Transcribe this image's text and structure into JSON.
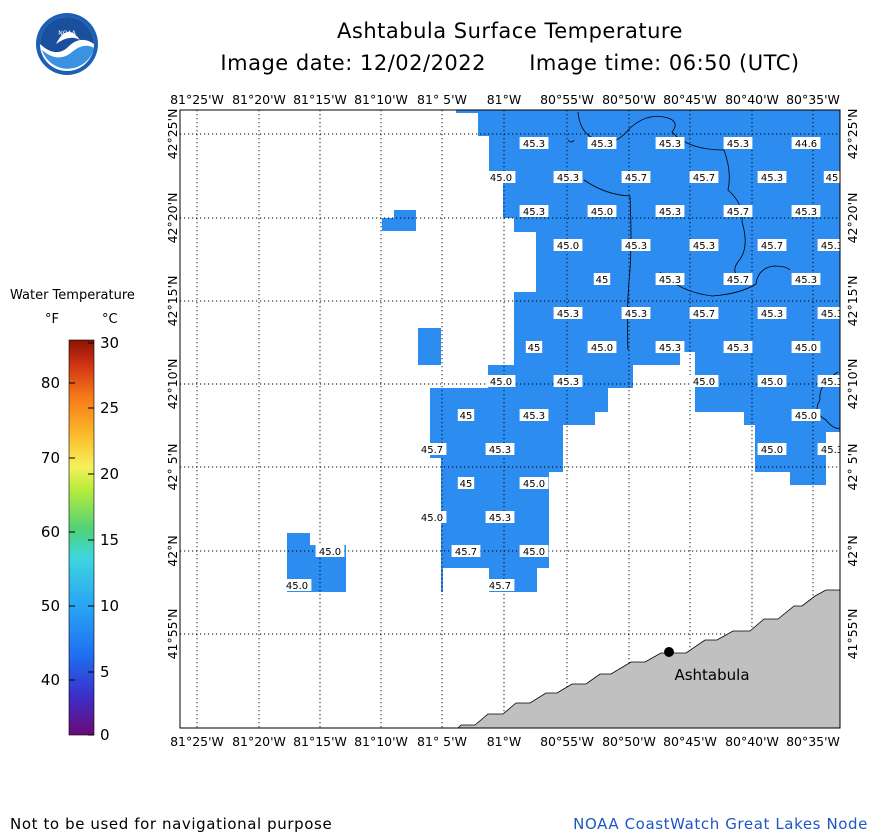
{
  "title": "Ashtabula Surface Temperature",
  "image_date": "Image date: 12/02/2022",
  "image_time": "Image time: 06:50 (UTC)",
  "legend": {
    "title": "Water Temperature",
    "unit_f": "°F",
    "unit_c": "°C",
    "fahrenheit_ticks": [
      "80",
      "70",
      "60",
      "50",
      "40"
    ],
    "celsius_ticks": [
      "30",
      "25",
      "20",
      "15",
      "10",
      "5",
      "0"
    ]
  },
  "axes": {
    "lon_labels": [
      "81°25'W",
      "81°20'W",
      "81°15'W",
      "81°10'W",
      "81° 5'W",
      "81°W",
      "80°55'W",
      "80°50'W",
      "80°45'W",
      "80°40'W",
      "80°35'W"
    ],
    "lat_labels": [
      "42°25'N",
      "42°20'N",
      "42°15'N",
      "42°10'N",
      "42° 5'N",
      "42°N",
      "41°55'N"
    ]
  },
  "city": {
    "name": "Ashtabula"
  },
  "temperature_labels": [
    "45.3",
    "45.3",
    "45.3",
    "45.3",
    "44.6",
    "45.0",
    "45.3",
    "45.7",
    "45.7",
    "45.3",
    "45",
    "45.3",
    "45.0",
    "45.3",
    "45.7",
    "45.3",
    "45.0",
    "45.3",
    "45.3",
    "45.7",
    "45.3",
    "45",
    "45.3",
    "45.7",
    "45.3",
    "45.3",
    "45.3",
    "45.7",
    "45.3",
    "45.3",
    "45",
    "45.0",
    "45.3",
    "45.3",
    "45.0",
    "45.0",
    "45.3",
    "45.0",
    "45.0",
    "45.3",
    "45",
    "45.3",
    "45.0",
    "45.7",
    "45.3",
    "45.0",
    "45.3",
    "45",
    "45.0",
    "45.0",
    "45.3",
    "45.0",
    "45.7",
    "45.0",
    "45.0",
    "45.7",
    "45.0"
  ],
  "footer": {
    "disclaimer": "Not to be used for navigational purpose",
    "credit": "NOAA CoastWatch Great Lakes Node"
  },
  "colors": {
    "water": "#2d8cf0",
    "land": "#c0c0c0",
    "credit_text": "#1e56c8"
  }
}
